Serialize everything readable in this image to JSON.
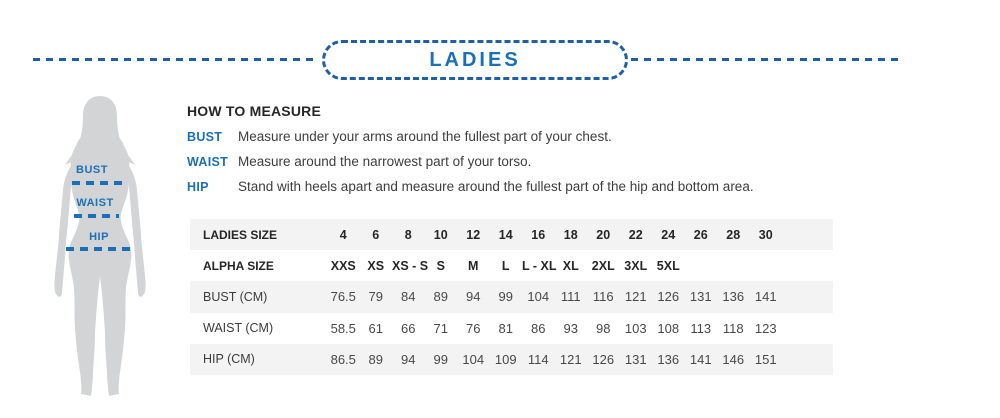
{
  "header": {
    "title": "LADIES"
  },
  "figure": {
    "bust_label": "BUST",
    "waist_label": "WAIST",
    "hip_label": "HIP"
  },
  "measure_guide": {
    "heading": "HOW TO MEASURE",
    "items": [
      {
        "term": "BUST",
        "desc": "Measure under your arms around the fullest part of your chest."
      },
      {
        "term": "WAIST",
        "desc": "Measure around the narrowest part of your torso."
      },
      {
        "term": "HIP",
        "desc": "Stand with heels apart and measure around the fullest part of the hip and bottom area."
      }
    ]
  },
  "size_table": {
    "rows": [
      {
        "label": "LADIES SIZE",
        "bold": true,
        "values": [
          "4",
          "6",
          "8",
          "10",
          "12",
          "14",
          "16",
          "18",
          "20",
          "22",
          "24",
          "26",
          "28",
          "30"
        ]
      },
      {
        "label": "ALPHA SIZE",
        "bold": true,
        "values": [
          "XXS",
          "XS",
          "XS - S",
          "S",
          "M",
          "L",
          "L - XL",
          "XL",
          "2XL",
          "3XL",
          "5XL",
          "",
          "",
          ""
        ]
      },
      {
        "label": "BUST (CM)",
        "bold": false,
        "values": [
          "76.5",
          "79",
          "84",
          "89",
          "94",
          "99",
          "104",
          "111",
          "116",
          "121",
          "126",
          "131",
          "136",
          "141"
        ]
      },
      {
        "label": "WAIST (CM)",
        "bold": false,
        "values": [
          "58.5",
          "61",
          "66",
          "71",
          "76",
          "81",
          "86",
          "93",
          "98",
          "103",
          "108",
          "113",
          "118",
          "123"
        ]
      },
      {
        "label": "HIP (CM)",
        "bold": false,
        "values": [
          "86.5",
          "89",
          "94",
          "99",
          "104",
          "109",
          "114",
          "121",
          "126",
          "131",
          "136",
          "141",
          "146",
          "151"
        ]
      }
    ]
  },
  "colors": {
    "accent-blue": "#1a70b8",
    "dash-blue": "#1e5fa8",
    "silhouette-gray": "#d2d4d5",
    "stripe-gray": "#f3f3f3",
    "heading-black": "#262626",
    "body-text": "#3d3d3f"
  }
}
